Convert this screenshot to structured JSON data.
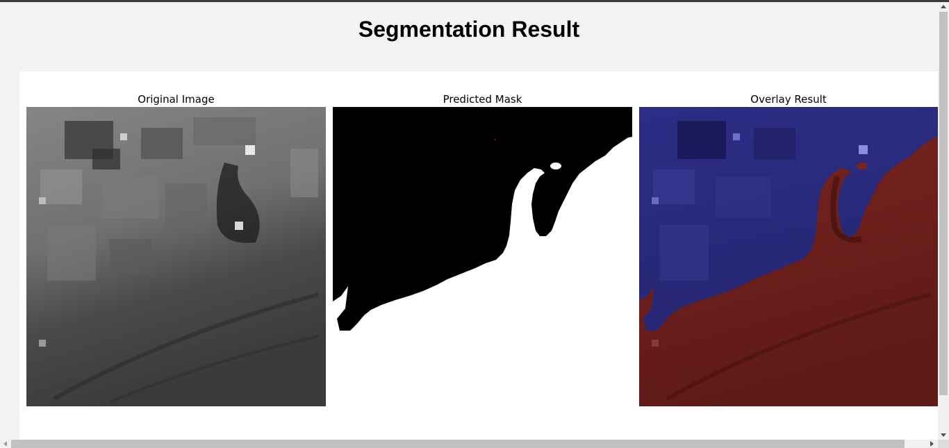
{
  "page": {
    "title": "Segmentation Result"
  },
  "figure": {
    "panels": [
      {
        "title": "Original Image"
      },
      {
        "title": "Predicted Mask"
      },
      {
        "title": "Overlay Result"
      }
    ]
  },
  "colors": {
    "page_background": "#f3f3f3",
    "figure_background": "#ffffff",
    "mask_foreground": "#ffffff",
    "mask_background": "#000000",
    "overlay_background_class": "#2a2a7e",
    "overlay_foreground_class": "#6b1d1b",
    "scrollbar_thumb": "#c1c1c1"
  }
}
